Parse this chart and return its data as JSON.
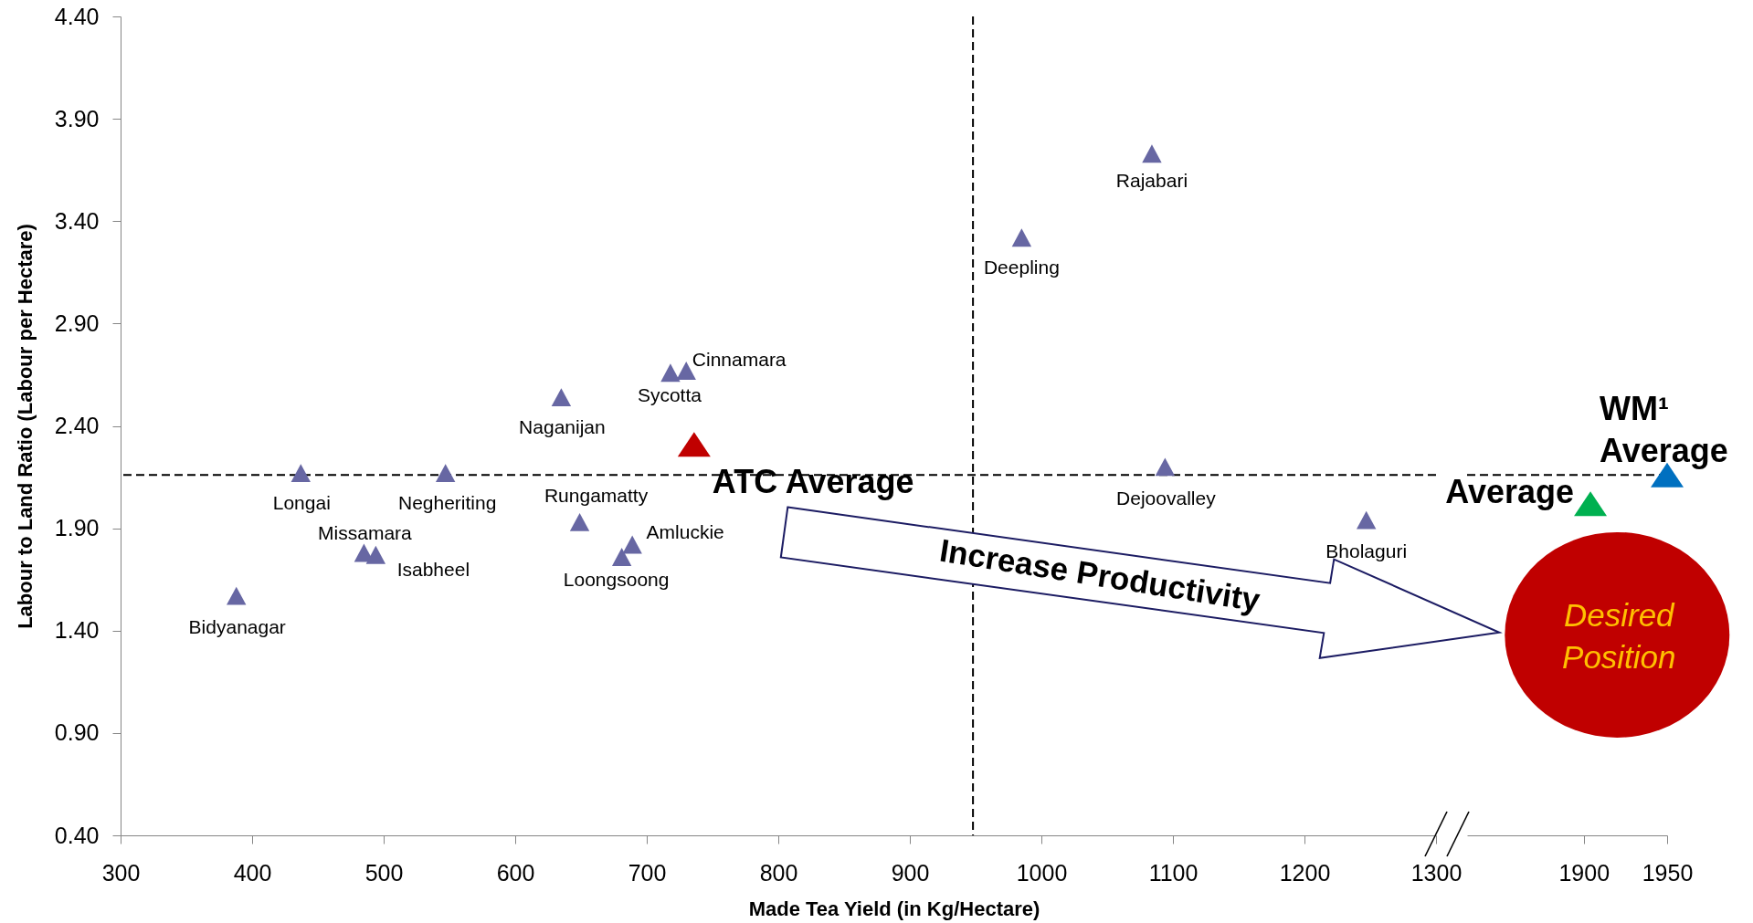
{
  "chart_data": [
    {
      "type": "scatter",
      "xlabel": "Made Tea Yield (in Kg/Hectare)",
      "ylabel": "Labour to Land Ratio (Labour per Hectare)",
      "xlim": [
        300,
        1300
      ],
      "xticks": [
        300,
        400,
        500,
        600,
        700,
        800,
        900,
        1000,
        1100,
        1200,
        1300
      ],
      "ylim": [
        0.4,
        4.4
      ],
      "yticks": [
        {
          "value": 0.4,
          "label": "0.40"
        },
        {
          "value": 0.9,
          "label": "0.90"
        },
        {
          "value": 1.4,
          "label": "1.40"
        },
        {
          "value": 1.9,
          "label": "1.90"
        },
        {
          "value": 2.4,
          "label": "2.40"
        },
        {
          "value": 2.9,
          "label": "2.90"
        },
        {
          "value": 3.4,
          "label": "3.40"
        },
        {
          "value": 3.9,
          "label": "3.90"
        },
        {
          "value": 4.4,
          "label": "4.40"
        }
      ],
      "marker": "triangle",
      "series": [
        {
          "color": "#6767a3",
          "x": [
            388,
            437,
            485,
            494,
            547,
            635,
            649,
            681,
            689,
            718,
            730,
            985,
            1084,
            1094,
            1247
          ],
          "values": [
            1.57,
            2.17,
            1.78,
            1.77,
            2.17,
            2.54,
            1.93,
            1.76,
            1.82,
            2.66,
            2.67,
            3.32,
            3.73,
            2.2,
            1.94
          ]
        },
        {
          "color": "#c00000",
          "x": [
            736
          ],
          "values": [
            2.31
          ]
        }
      ],
      "ref_lines": [
        {
          "axis": "x",
          "value": 948,
          "color": "#000000",
          "line_style": "dashed"
        },
        {
          "axis": "y",
          "value": 2.16,
          "color": "#000000",
          "line_style": "dashed"
        }
      ],
      "annotations": [
        {
          "text": "Bidyanagar",
          "x": 388,
          "y": 1.57
        },
        {
          "text": "Longai",
          "x": 437,
          "y": 2.17
        },
        {
          "text": "Missamara",
          "x": 485,
          "y": 1.78
        },
        {
          "text": "Isabheel",
          "x": 494,
          "y": 1.77
        },
        {
          "text": "Negheriting",
          "x": 547,
          "y": 2.17
        },
        {
          "text": "Naganijan",
          "x": 635,
          "y": 2.54
        },
        {
          "text": "Rungamatty",
          "x": 649,
          "y": 1.93
        },
        {
          "text": "Loongsoong",
          "x": 681,
          "y": 1.76
        },
        {
          "text": "Amluckie",
          "x": 689,
          "y": 1.82
        },
        {
          "text": "Sycotta",
          "x": 718,
          "y": 2.66
        },
        {
          "text": "Cinnamara",
          "x": 730,
          "y": 2.67
        },
        {
          "text": "Deepling",
          "x": 985,
          "y": 3.32
        },
        {
          "text": "Rajabari",
          "x": 1084,
          "y": 3.73
        },
        {
          "text": "Dejoovalley",
          "x": 1094,
          "y": 2.2
        },
        {
          "text": "Bholaguri",
          "x": 1247,
          "y": 1.94
        },
        {
          "text": "ATC Average",
          "x": 736,
          "y": 2.31
        },
        "Increase Productivity"
      ]
    },
    {
      "type": "scatter",
      "xlim": [
        1830,
        1950
      ],
      "xticks": [
        1900,
        1950
      ],
      "ylim": [
        0.4,
        4.4
      ],
      "tick_labels": "x",
      "marker": "triangle",
      "series": [
        {
          "color": "#00b050",
          "x": [
            1904
          ],
          "values": [
            2.02
          ]
        },
        {
          "color": "#0070c0",
          "x": [
            1950
          ],
          "values": [
            2.16
          ]
        }
      ],
      "ref_lines": [
        {
          "axis": "y",
          "value": 2.16,
          "color": "#000000",
          "line_style": "dashed"
        }
      ],
      "annotations": [
        {
          "text": "Average",
          "x": 1904,
          "y": 2.02
        },
        {
          "text": "WM¹ Average",
          "x": 1950,
          "y": 2.16
        },
        "Desired Position"
      ]
    }
  ]
}
